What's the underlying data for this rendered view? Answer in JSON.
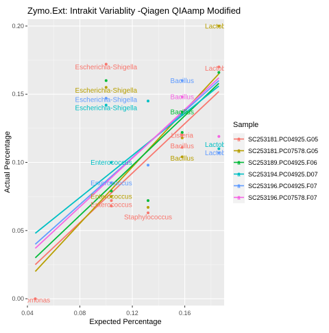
{
  "chart_data": {
    "type": "scatter",
    "title": "Zymo.Ext: Intrakit Variablity -Qiagen QIAamp  Modified",
    "xlabel": "Expected Percentage",
    "ylabel": "Actual Percentage",
    "xlim": [
      0.04,
      0.19
    ],
    "ylim": [
      -0.005,
      0.205
    ],
    "x_ticks": [
      0.04,
      0.08,
      0.12,
      0.16
    ],
    "x_tick_labels": [
      "0.04",
      "0.08",
      "0.12",
      "0.16"
    ],
    "y_ticks": [
      0.0,
      0.05,
      0.1,
      0.15,
      0.2
    ],
    "y_tick_labels": [
      "0.00",
      "0.05",
      "0.10",
      "0.15",
      "0.20"
    ],
    "grid": true,
    "legend": {
      "title": "Sample",
      "position": "right"
    },
    "series": [
      {
        "name": "SC253181.PC04925.G05",
        "color": "#F8766D",
        "fit": [
          [
            0.046,
            0.025
          ],
          [
            0.186,
            0.152
          ]
        ],
        "points": [
          [
            0.1,
            0.172
          ],
          [
            0.186,
            0.17
          ],
          [
            0.158,
            0.12
          ],
          [
            0.158,
            0.111
          ],
          [
            0.104,
            0.072
          ],
          [
            0.104,
            0.068
          ],
          [
            0.132,
            0.063
          ],
          [
            0.046,
            0.0
          ]
        ],
        "labels": [
          {
            "text": "Escherichia-Shigella",
            "x": 0.1,
            "y": 0.17
          },
          {
            "text": "Lactobac",
            "x": 0.186,
            "y": 0.169
          },
          {
            "text": "Listeria",
            "x": 0.158,
            "y": 0.12
          },
          {
            "text": "Bacillus",
            "x": 0.158,
            "y": 0.112
          },
          {
            "text": "Enterococcus",
            "x": 0.104,
            "y": 0.069
          },
          {
            "text": "Staphylococcus",
            "x": 0.132,
            "y": 0.06
          },
          {
            "text": "idomonas",
            "x": 0.046,
            "y": -0.001
          }
        ]
      },
      {
        "name": "SC253181.PC07578.G05",
        "color": "#B79F00",
        "fit": [
          [
            0.046,
            0.02
          ],
          [
            0.186,
            0.165
          ]
        ],
        "points": [
          [
            0.1,
            0.155
          ],
          [
            0.186,
            0.2
          ],
          [
            0.158,
            0.118
          ],
          [
            0.158,
            0.104
          ],
          [
            0.104,
            0.075
          ],
          [
            0.132,
            0.067
          ]
        ],
        "labels": [
          {
            "text": "Escherichia-Shigella",
            "x": 0.1,
            "y": 0.153
          },
          {
            "text": "Lactobac",
            "x": 0.186,
            "y": 0.2
          },
          {
            "text": "Bacillus",
            "x": 0.158,
            "y": 0.103
          },
          {
            "text": "Enterococcus",
            "x": 0.104,
            "y": 0.075
          }
        ]
      },
      {
        "name": "SC253189.PC04925.F06",
        "color": "#00BA38",
        "fit": [
          [
            0.046,
            0.03
          ],
          [
            0.186,
            0.158
          ]
        ],
        "points": [
          [
            0.1,
            0.16
          ],
          [
            0.186,
            0.166
          ],
          [
            0.158,
            0.137
          ],
          [
            0.158,
            0.122
          ],
          [
            0.104,
            0.079
          ],
          [
            0.132,
            0.072
          ]
        ],
        "labels": [
          {
            "text": "Bacillus",
            "x": 0.158,
            "y": 0.137
          }
        ]
      },
      {
        "name": "SC253194.PC04925.D07",
        "color": "#00BFC4",
        "fit": [
          [
            0.046,
            0.048
          ],
          [
            0.186,
            0.156
          ]
        ],
        "points": [
          [
            0.1,
            0.142
          ],
          [
            0.132,
            0.145
          ],
          [
            0.158,
            0.135
          ],
          [
            0.104,
            0.1
          ],
          [
            0.186,
            0.11
          ]
        ],
        "labels": [
          {
            "text": "Escherichia-Shigella",
            "x": 0.1,
            "y": 0.14
          },
          {
            "text": "Enterococcus",
            "x": 0.104,
            "y": 0.1
          },
          {
            "text": "Lactobac",
            "x": 0.186,
            "y": 0.113
          }
        ]
      },
      {
        "name": "SC253196.PC04925.F07",
        "color": "#619CFF",
        "fit": [
          [
            0.046,
            0.04
          ],
          [
            0.186,
            0.16
          ]
        ],
        "points": [
          [
            0.1,
            0.147
          ],
          [
            0.158,
            0.16
          ],
          [
            0.104,
            0.085
          ],
          [
            0.132,
            0.098
          ],
          [
            0.186,
            0.107
          ]
        ],
        "labels": [
          {
            "text": "Escherichia-Shigella",
            "x": 0.1,
            "y": 0.146
          },
          {
            "text": "Bacillus",
            "x": 0.158,
            "y": 0.16
          },
          {
            "text": "Enterococcus",
            "x": 0.104,
            "y": 0.085
          },
          {
            "text": "Lactobac",
            "x": 0.186,
            "y": 0.107
          }
        ]
      },
      {
        "name": "SC253196.PC07578.F07",
        "color": "#F564E3",
        "fit": [
          [
            0.046,
            0.037
          ],
          [
            0.186,
            0.162
          ]
        ],
        "points": [
          [
            0.158,
            0.148
          ],
          [
            0.186,
            0.119
          ]
        ],
        "labels": [
          {
            "text": "Bacillus",
            "x": 0.158,
            "y": 0.148
          }
        ]
      }
    ]
  }
}
